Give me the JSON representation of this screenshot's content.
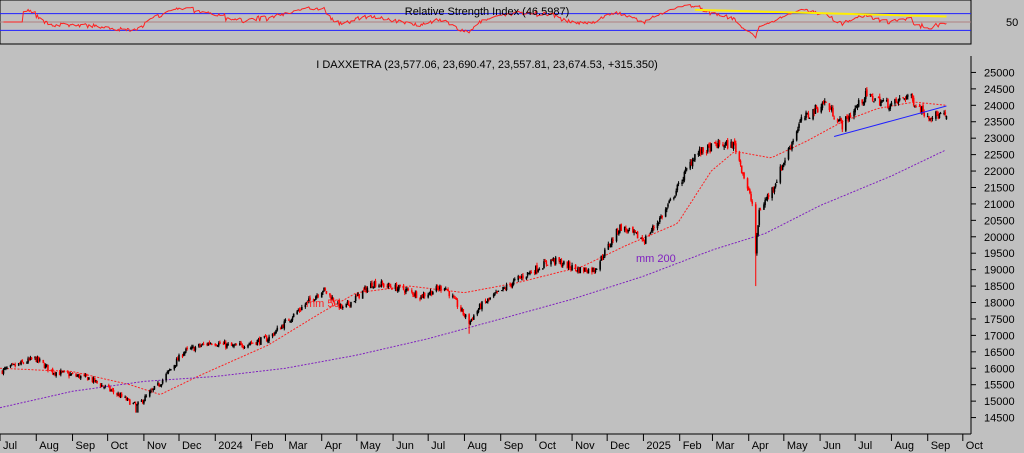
{
  "chart_data": [
    {
      "type": "line",
      "title": "Relative Strength Index (46.5987)",
      "y_tick_labels": [
        "50"
      ],
      "ylim": [
        0,
        100
      ],
      "reference_lines": [
        30,
        70
      ],
      "midline": 50,
      "rsi_last": 46.5987,
      "colors": {
        "rsi": "#ff2020",
        "bands": "#2020ff",
        "midline": "#b08080",
        "trendline": "#ffee00"
      },
      "trendline": {
        "x": [
          "2025-02-14",
          "2025-09-17"
        ],
        "y": [
          79,
          63
        ]
      }
    },
    {
      "type": "candlestick",
      "title": "I DAXXETRA (23,577.06, 23,690.47, 23,557.81, 23,674.53, +315.350)",
      "ylim": [
        14000,
        25500
      ],
      "y_tick_labels": [
        "14500",
        "15000",
        "15500",
        "16000",
        "16500",
        "17000",
        "17500",
        "18000",
        "18500",
        "19000",
        "19500",
        "20000",
        "20500",
        "21000",
        "21500",
        "22000",
        "22500",
        "23000",
        "23500",
        "24000",
        "24500",
        "25000"
      ],
      "x_tick_labels": [
        "Jul",
        "Aug",
        "Sep",
        "Oct",
        "Nov",
        "Dec",
        "2024",
        "Feb",
        "Mar",
        "Apr",
        "May",
        "Jun",
        "Jul",
        "Aug",
        "Sep",
        "Oct",
        "Nov",
        "Dec",
        "2025",
        "Feb",
        "Mar",
        "Apr",
        "May",
        "Jun",
        "Jul",
        "Aug",
        "Sep",
        "Oct"
      ],
      "x_range": [
        "2023-07-01",
        "2025-10-08"
      ],
      "last_ohlc": {
        "open": 23577.06,
        "high": 23690.47,
        "low": 23557.81,
        "close": 23674.53,
        "change": 315.35
      },
      "candle_colors": {
        "up": "#000000",
        "down": "#ff0000"
      },
      "anchors": {
        "x": [
          "2023-07-01",
          "2023-07-31",
          "2023-08-15",
          "2023-09-15",
          "2023-10-05",
          "2023-10-26",
          "2023-11-15",
          "2023-12-05",
          "2023-12-29",
          "2024-01-17",
          "2024-02-15",
          "2024-03-15",
          "2024-04-02",
          "2024-04-19",
          "2024-05-15",
          "2024-06-10",
          "2024-06-25",
          "2024-07-15",
          "2024-08-05",
          "2024-08-15",
          "2024-09-15",
          "2024-10-15",
          "2024-11-06",
          "2024-11-20",
          "2024-12-12",
          "2025-01-02",
          "2025-01-20",
          "2025-02-14",
          "2025-03-05",
          "2025-03-20",
          "2025-04-04",
          "2025-04-07",
          "2025-04-10",
          "2025-04-22",
          "2025-05-15",
          "2025-06-05",
          "2025-06-20",
          "2025-07-10",
          "2025-08-01",
          "2025-08-15",
          "2025-09-01",
          "2025-09-17"
        ],
        "y": [
          15900,
          16300,
          15900,
          15700,
          15300,
          14850,
          15550,
          16500,
          16800,
          16650,
          16900,
          17850,
          18400,
          17800,
          18600,
          18400,
          18200,
          18500,
          17400,
          17900,
          18700,
          19300,
          19000,
          19000,
          20300,
          19900,
          20800,
          22500,
          22800,
          22800,
          21000,
          19500,
          20800,
          21500,
          23500,
          24100,
          23400,
          24300,
          24000,
          24300,
          23700,
          23674.53
        ]
      },
      "sma": [
        {
          "name": "mm 50",
          "color": "#ff2020",
          "x": [
            "2023-07-01",
            "2023-09-01",
            "2023-10-20",
            "2023-11-15",
            "2023-12-20",
            "2024-02-15",
            "2024-04-01",
            "2024-05-01",
            "2024-06-15",
            "2024-08-01",
            "2024-09-15",
            "2024-11-10",
            "2024-12-15",
            "2025-01-30",
            "2025-02-28",
            "2025-03-20",
            "2025-04-20",
            "2025-05-20",
            "2025-06-20",
            "2025-07-20",
            "2025-08-20",
            "2025-09-17"
          ],
          "y": [
            16000,
            15900,
            15500,
            15200,
            15800,
            16700,
            17700,
            18300,
            18500,
            18300,
            18600,
            19100,
            19700,
            20400,
            22000,
            22600,
            22400,
            22900,
            23500,
            23900,
            24100,
            24000
          ]
        },
        {
          "name": "mm 200",
          "color": "#8020c0",
          "x": [
            "2023-07-01",
            "2023-09-01",
            "2023-11-01",
            "2024-01-01",
            "2024-03-01",
            "2024-05-01",
            "2024-07-01",
            "2024-09-01",
            "2024-11-01",
            "2025-01-01",
            "2025-03-01",
            "2025-04-15",
            "2025-06-01",
            "2025-08-01",
            "2025-09-17"
          ],
          "y": [
            14800,
            15300,
            15600,
            15750,
            16000,
            16400,
            16900,
            17500,
            18100,
            18800,
            19600,
            20100,
            20950,
            21850,
            22650
          ]
        }
      ],
      "annotations": [
        "mm 50",
        "mm 200"
      ],
      "trendline": {
        "color": "#2020ff",
        "x": [
          "2025-06-13",
          "2025-09-17"
        ],
        "y": [
          23050,
          23980
        ]
      }
    }
  ]
}
